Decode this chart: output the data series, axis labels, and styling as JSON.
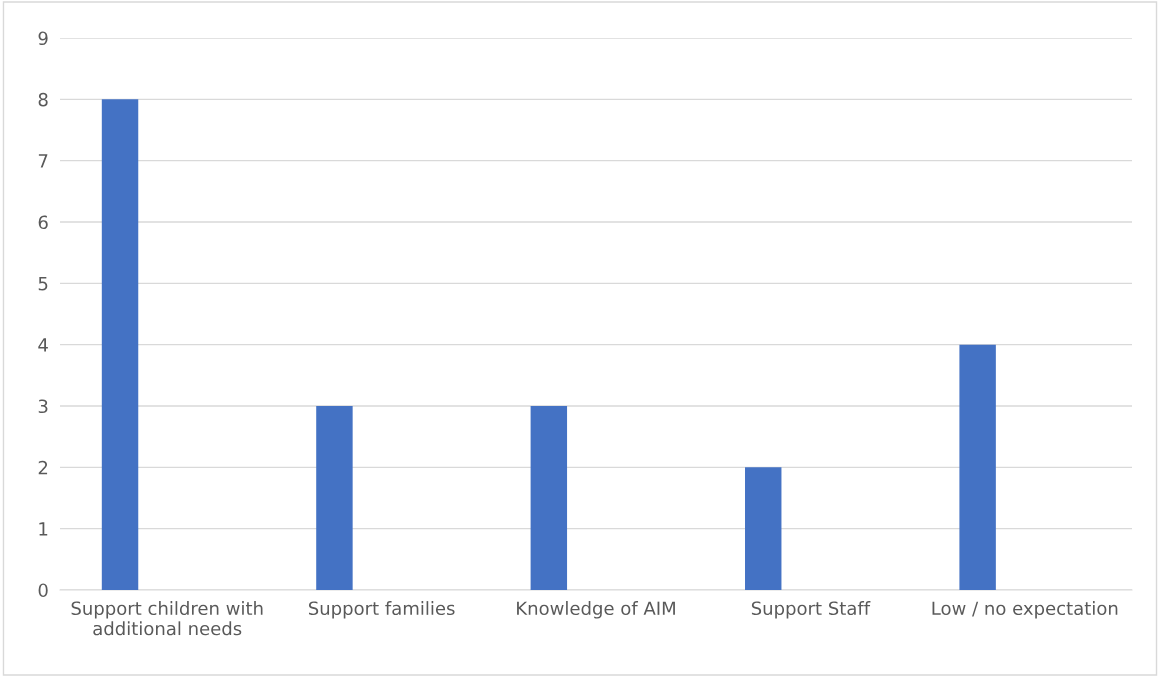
{
  "chart_data": {
    "type": "bar",
    "categories": [
      "Support children with\nadditional needs",
      "Support families",
      "Knowledge of AIM",
      "Support Staff",
      "Low / no expectation"
    ],
    "values": [
      8,
      3,
      3,
      2,
      4
    ],
    "color": "#4472c4",
    "ylim": [
      0,
      9
    ],
    "yticks": [
      0,
      1,
      2,
      3,
      4,
      5,
      6,
      7,
      8,
      9
    ],
    "grid": "y"
  }
}
